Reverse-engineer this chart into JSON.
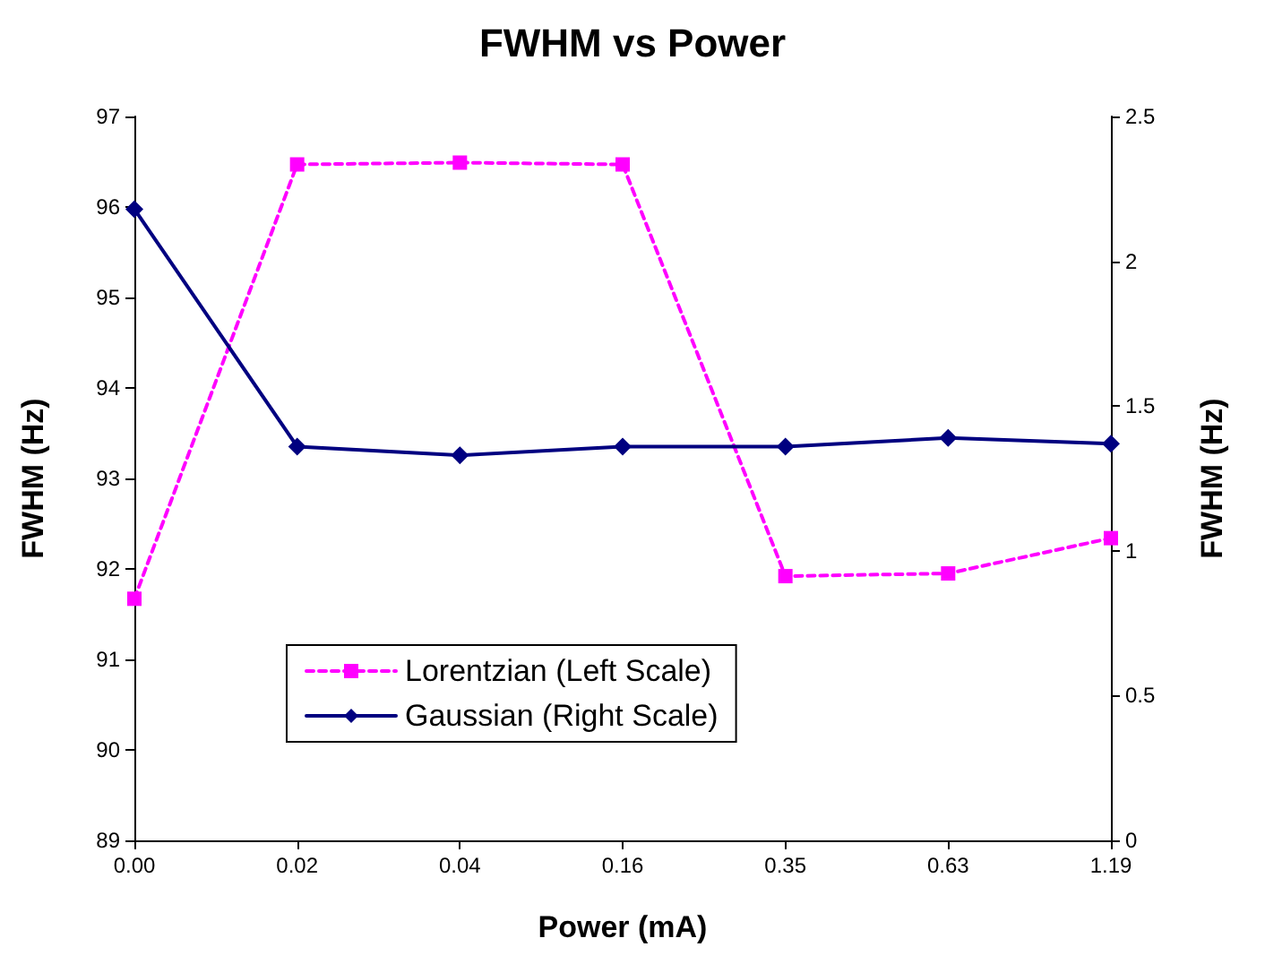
{
  "chart_data": {
    "type": "line",
    "title": "FWHM vs Power",
    "xlabel": "Power (mA)",
    "ylabel": "FWHM (Hz)",
    "y2label": "FWHM (Hz)",
    "categories": [
      "0.00",
      "0.02",
      "0.04",
      "0.16",
      "0.35",
      "0.63",
      "1.19"
    ],
    "series": [
      {
        "name": "Lorentzian (Left Scale)",
        "color": "#ff00ff",
        "marker": "square",
        "line_style": "dashed",
        "values": [
          91.67,
          96.47,
          96.49,
          96.47,
          91.92,
          91.95,
          92.34
        ]
      },
      {
        "name": "Gaussian (Right Scale)",
        "color": "#000080",
        "marker": "diamond",
        "line_style": "solid",
        "axis": "y2",
        "values": [
          2.18,
          1.36,
          1.33,
          1.36,
          1.36,
          1.39,
          1.37
        ]
      }
    ],
    "ylim": [
      89,
      97
    ],
    "yticks": [
      89,
      90,
      91,
      92,
      93,
      94,
      95,
      96,
      97
    ],
    "y2lim": [
      0,
      2.5
    ],
    "y2ticks": [
      0,
      0.5,
      1,
      1.5,
      2,
      2.5
    ],
    "grid": false,
    "legend": "bottom left"
  }
}
